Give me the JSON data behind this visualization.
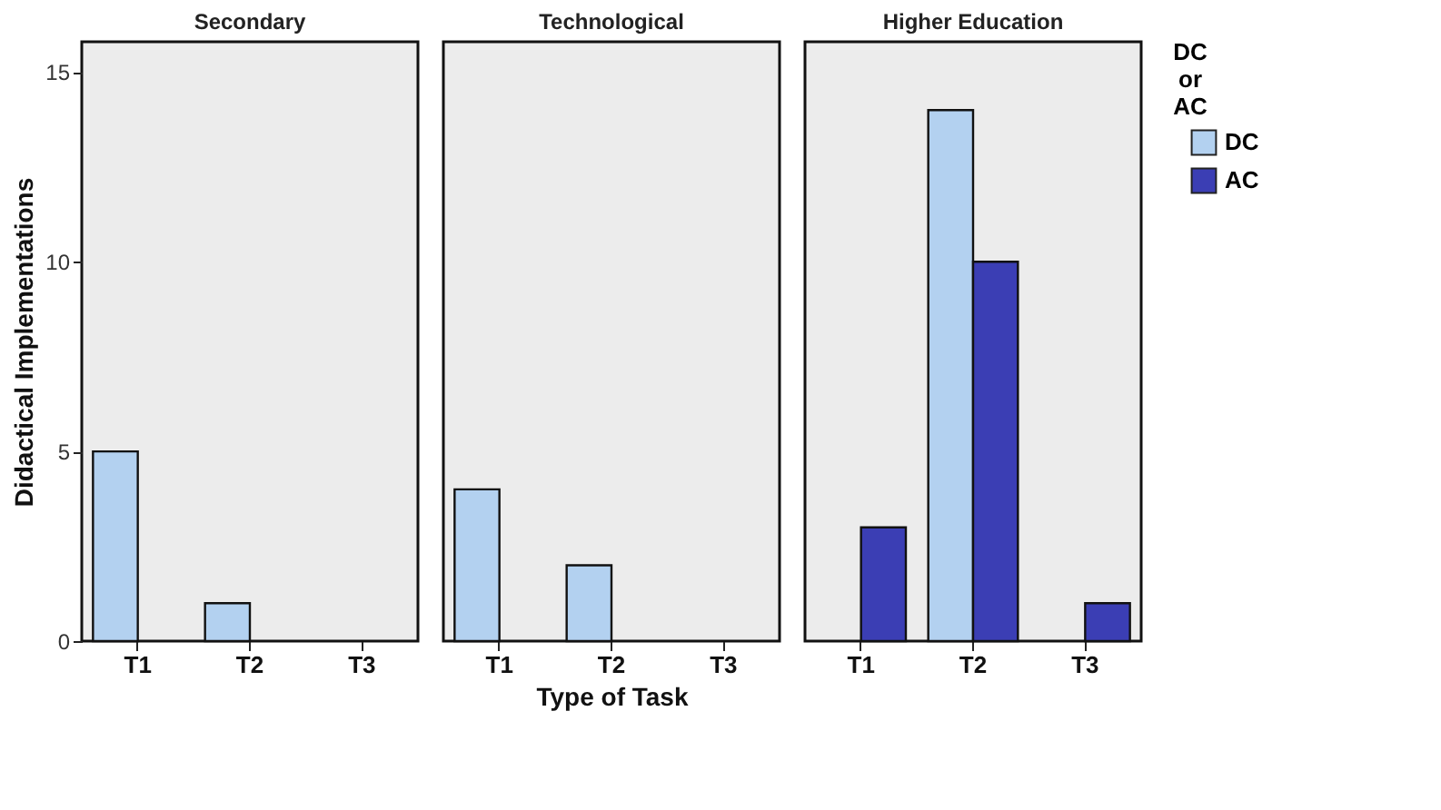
{
  "chart_data": [
    {
      "type": "bar",
      "title": "Secondary",
      "ylabel": "Didactical Implementations",
      "categories": [
        "T1",
        "T2",
        "T3"
      ],
      "ylim": [
        0,
        15.8
      ],
      "yticks": [
        0,
        5,
        10,
        15
      ],
      "grid": false,
      "series": [
        {
          "color": "#b3d1f0",
          "values": [
            5,
            1,
            null
          ]
        }
      ]
    },
    {
      "type": "bar",
      "title": "Technological",
      "xlabel": "Type of Task",
      "categories": [
        "T1",
        "T2",
        "T3"
      ],
      "ylim": [
        0,
        15.8
      ],
      "yticks": [
        0,
        5,
        10,
        15
      ],
      "grid": false,
      "tick_labels": "x",
      "series": [
        {
          "color": "#b3d1f0",
          "values": [
            4,
            2,
            null
          ]
        }
      ]
    },
    {
      "type": "bar",
      "title": "Higher Education",
      "categories": [
        "T1",
        "T2",
        "T3"
      ],
      "ylim": [
        0,
        15.8
      ],
      "yticks": [
        0,
        5,
        10,
        15
      ],
      "grid": false,
      "tick_labels": "x",
      "legend": "right",
      "legend_title": "DC\nor\nAC",
      "series": [
        {
          "name": "DC",
          "color": "#b3d1f0",
          "values": [
            null,
            14,
            null
          ]
        },
        {
          "name": "AC",
          "color": "#3b3eb4",
          "values": [
            3,
            10,
            1
          ]
        }
      ]
    }
  ]
}
